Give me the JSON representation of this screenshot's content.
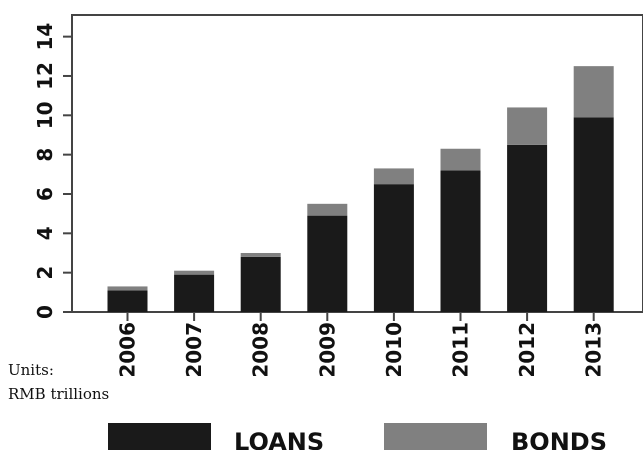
{
  "chart_data": {
    "type": "bar",
    "stacked": true,
    "categories": [
      "2006",
      "2007",
      "2008",
      "2009",
      "2010",
      "2011",
      "2012",
      "2013"
    ],
    "series": [
      {
        "name": "LOANS",
        "color": "#1a1a1a",
        "values": [
          1.1,
          1.9,
          2.8,
          4.9,
          6.5,
          7.2,
          8.5,
          9.9
        ]
      },
      {
        "name": "BONDS",
        "color": "#808080",
        "values": [
          0.2,
          0.2,
          0.2,
          0.6,
          0.8,
          1.1,
          1.9,
          2.6
        ]
      }
    ],
    "y_ticks": [
      "0",
      "2",
      "4",
      "6",
      "8",
      "10",
      "12",
      "14"
    ],
    "ylim": [
      0,
      15.1
    ],
    "units_note": [
      "Units:",
      "RMB trillions"
    ],
    "grid": false,
    "legend_position": "bottom"
  }
}
